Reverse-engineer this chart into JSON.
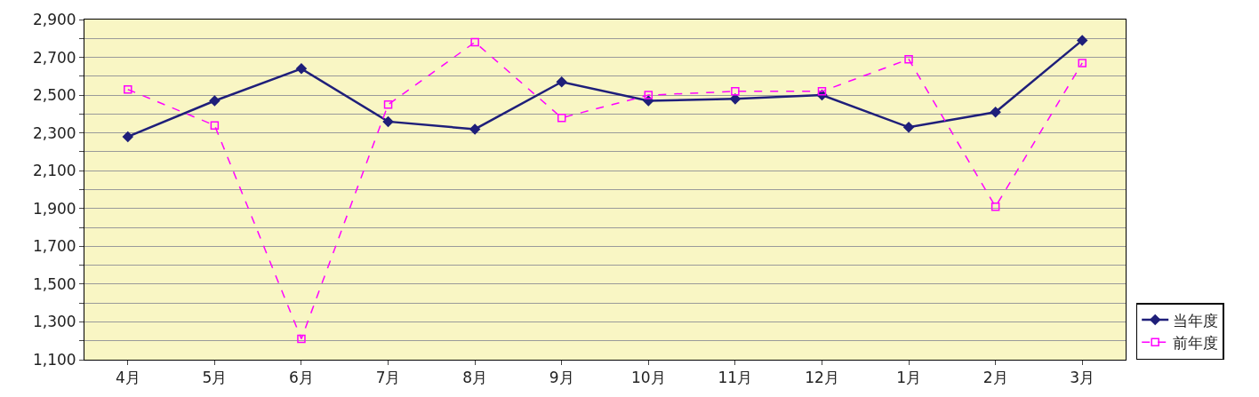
{
  "chart_data": {
    "type": "line",
    "categories": [
      "4月",
      "5月",
      "6月",
      "7月",
      "8月",
      "9月",
      "10月",
      "11月",
      "12月",
      "1月",
      "2月",
      "3月"
    ],
    "series": [
      {
        "name": "当年度",
        "color": "#1f1f7a",
        "marker": "diamond",
        "line_style": "solid",
        "values": [
          2280,
          2470,
          2640,
          2360,
          2320,
          2570,
          2470,
          2480,
          2500,
          2330,
          2410,
          2790
        ]
      },
      {
        "name": "前年度",
        "color": "#ff00ff",
        "marker": "square",
        "line_style": "dashed",
        "values": [
          2530,
          2340,
          1210,
          2450,
          2780,
          2380,
          2500,
          2520,
          2520,
          2690,
          1910,
          2670
        ]
      }
    ],
    "ylim": [
      1100,
      2900
    ],
    "yticks": [
      {
        "value": 1100,
        "label": "1,100"
      },
      {
        "value": 1200,
        "label": null
      },
      {
        "value": 1300,
        "label": "1,300"
      },
      {
        "value": 1400,
        "label": null
      },
      {
        "value": 1500,
        "label": "1,500"
      },
      {
        "value": 1600,
        "label": null
      },
      {
        "value": 1700,
        "label": "1,700"
      },
      {
        "value": 1800,
        "label": null
      },
      {
        "value": 1900,
        "label": "1,900"
      },
      {
        "value": 2000,
        "label": null
      },
      {
        "value": 2100,
        "label": "2,100"
      },
      {
        "value": 2200,
        "label": null
      },
      {
        "value": 2300,
        "label": "2,300"
      },
      {
        "value": 2400,
        "label": null
      },
      {
        "value": 2500,
        "label": "2,500"
      },
      {
        "value": 2600,
        "label": null
      },
      {
        "value": 2700,
        "label": "2,700"
      },
      {
        "value": 2800,
        "label": null
      },
      {
        "value": 2900,
        "label": "2,900"
      }
    ],
    "grid": "y",
    "legend": "right"
  }
}
